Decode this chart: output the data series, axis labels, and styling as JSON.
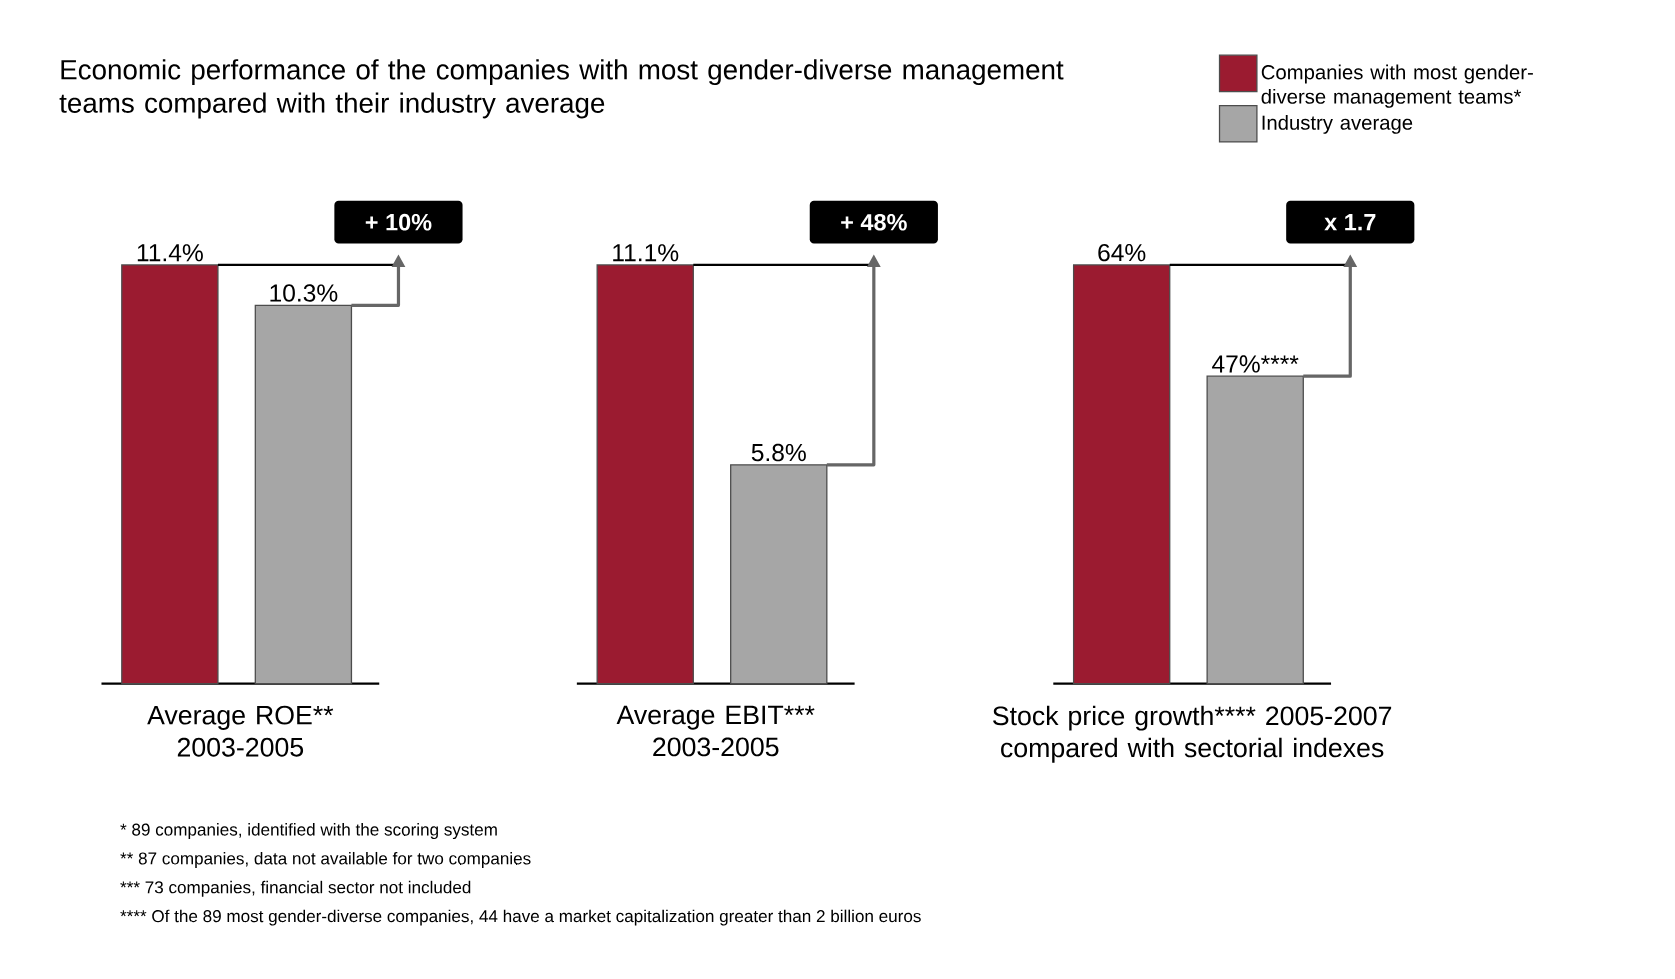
{
  "chart_data": [
    {
      "type": "bar",
      "title": "Economic performance of the companies with most gender-diverse management teams compared with their industry average",
      "categories": [
        null
      ],
      "xlabel": "Average ROE** 2003-2005",
      "series": [
        {
          "color": "#9b1b30",
          "values": [
            11.4
          ],
          "value_labels": [
            "11.4%"
          ]
        },
        {
          "color": "#a6a6a6",
          "values": [
            10.3
          ],
          "value_labels": [
            "10.3%"
          ]
        }
      ],
      "annotations": [
        "+ 10%",
        "* 89 companies, identified with the scoring system",
        "** 87 companies, data not available for two companies",
        "*** 73 companies, financial sector not included",
        "**** Of the 89 most gender-diverse companies, 44 have a market capitalization greater than 2 billion euros"
      ]
    },
    {
      "type": "bar",
      "categories": [
        null
      ],
      "xlabel": "Average EBIT*** 2003-2005",
      "series": [
        {
          "color": "#9b1b30",
          "values": [
            11.1
          ],
          "value_labels": [
            "11.1%"
          ]
        },
        {
          "color": "#a6a6a6",
          "values": [
            5.8
          ],
          "value_labels": [
            "5.8%"
          ]
        }
      ],
      "annotations": [
        "+ 48%"
      ]
    },
    {
      "type": "bar",
      "categories": [
        null
      ],
      "xlabel": "Stock price growth**** 2005-2007 compared with sectorial indexes",
      "legend": "top right",
      "series": [
        {
          "name": "Companies with most gender-diverse management teams*",
          "color": "#9b1b30",
          "values": [
            64
          ],
          "value_labels": [
            "64%"
          ]
        },
        {
          "name": "Industry average",
          "color": "#a6a6a6",
          "values": [
            47
          ],
          "value_labels": [
            "47%****"
          ]
        }
      ],
      "annotations": [
        "x 1.7"
      ]
    }
  ]
}
